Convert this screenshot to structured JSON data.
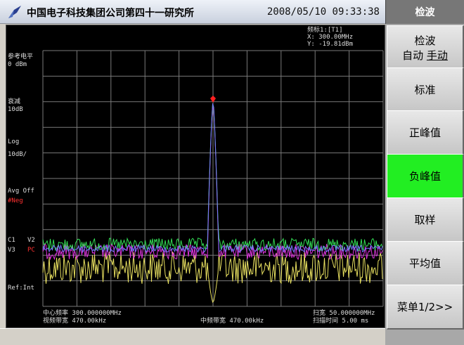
{
  "window": {
    "title": "中国电子科技集团公司第四十一研究所",
    "datetime": "2008/05/10   09:33:38"
  },
  "screen": {
    "marker_block": {
      "line1": "频标1:[T1]",
      "line2": "X: 300.00MHz",
      "line3": "Y: -19.81dBm"
    },
    "left_labels": {
      "ref_level_label": "参考电平",
      "ref_level_value": "0  dBm",
      "atten_label": "衰减",
      "atten_value": "10dB",
      "scale_type": "Log",
      "scale_value": "10dB/",
      "avg": "Avg Off",
      "detector": "#Neg",
      "trace_c1": "C1",
      "trace_v2": "V2",
      "trace_v3": "V3",
      "trace_pc": "PC",
      "ref": "Ref:Int"
    },
    "bottom_labels": {
      "center_freq": "中心频率 300.000000MHz",
      "vbw": "视频带宽 470.00kHz",
      "rbw": "中频带宽 470.00kHz",
      "span": "扫宽 50.000000MHz",
      "sweep_time": "扫描时间 5.00  ms"
    }
  },
  "softkey_menu": {
    "title": "检波",
    "keys": [
      {
        "line1": "检波",
        "line2a": "自动",
        "line2b": "手动"
      },
      {
        "label": "标准"
      },
      {
        "label": "正峰值"
      },
      {
        "label": "负峰值",
        "active": true
      },
      {
        "label": "取样"
      },
      {
        "label": "平均值"
      },
      {
        "label": "菜单1/2>>"
      }
    ]
  },
  "colors": {
    "active_key": "#22ee22",
    "trace_green": "#33dd55",
    "trace_magenta": "#dd33dd",
    "trace_yellow": "#e8e060",
    "trace_blue": "#7777ff",
    "marker": "#ff2020"
  }
}
